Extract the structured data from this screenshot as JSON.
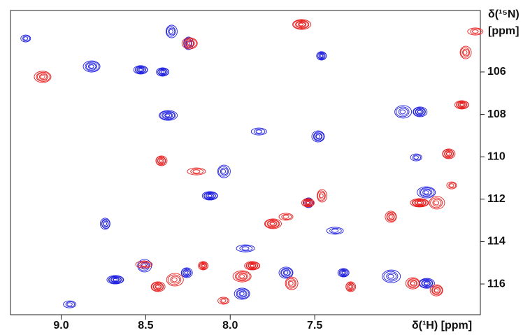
{
  "chart_data": {
    "type": "contour",
    "x_label": "δ(¹H) [ppm]",
    "y_label_lines": [
      "δ(¹⁵N)",
      "[ppm]"
    ],
    "xlim": [
      9.3,
      6.52
    ],
    "ylim": [
      103.1,
      117.45
    ],
    "xticks": [
      {
        "value": 9,
        "label": "9.0"
      },
      8.5,
      {
        "value": 8,
        "label": "8.0"
      },
      7.5
    ],
    "yticks": [
      106,
      108,
      110,
      112,
      114,
      116
    ],
    "series": [
      {
        "color": "#2020e0",
        "x": [
          9.21,
          8.82,
          8.53,
          8.35,
          8.37,
          7.83,
          7.48,
          7.46,
          6.98,
          6.88,
          6.9,
          6.84,
          8.12,
          8.04,
          7.54,
          7.38,
          7.67,
          7.33,
          7.05,
          6.84,
          8.95,
          8.74,
          8.68,
          8.51,
          8.26,
          7.91,
          7.93,
          8.4,
          8.25
        ],
        "values": [
          104.42,
          105.74,
          105.9,
          104.09,
          108.05,
          108.81,
          109.04,
          105.24,
          107.88,
          107.88,
          110.03,
          111.68,
          111.84,
          110.69,
          112.17,
          113.49,
          115.47,
          115.47,
          115.64,
          115.97,
          116.96,
          113.16,
          115.8,
          115.14,
          115.47,
          114.32,
          116.46,
          106.0,
          104.65
        ]
      },
      {
        "color": "#e82020",
        "x": [
          8.41,
          8.2,
          8.24,
          7.54,
          7.46,
          7.75,
          7.67,
          7.05,
          6.88,
          6.78,
          6.71,
          6.69,
          9.11,
          6.63,
          6.61,
          7.58,
          6.55,
          6.78,
          8.16,
          8.33,
          8.43,
          8.04,
          7.93,
          7.87,
          7.64,
          7.29,
          8.51,
          6.92
        ],
        "values": [
          110.19,
          110.69,
          104.65,
          112.17,
          111.84,
          113.16,
          112.83,
          112.83,
          112.17,
          112.17,
          109.86,
          111.35,
          106.23,
          107.55,
          105.08,
          103.76,
          104.09,
          116.3,
          115.14,
          115.8,
          116.13,
          116.79,
          115.64,
          115.14,
          115.97,
          116.13,
          115.08,
          115.97
        ]
      }
    ]
  }
}
